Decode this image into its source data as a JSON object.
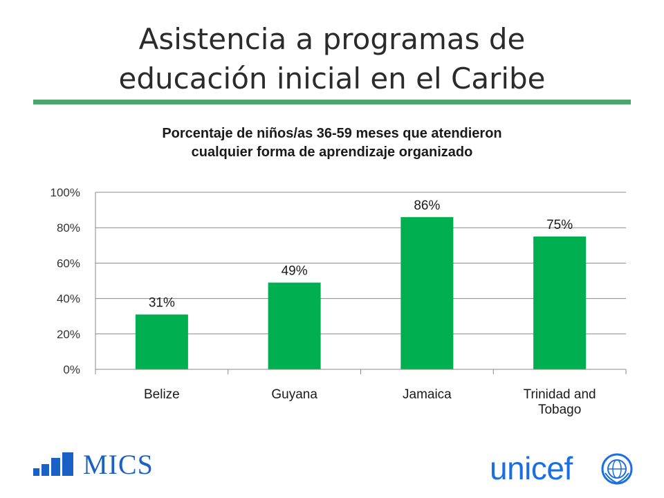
{
  "slide": {
    "title_line1": "Asistencia a programas de",
    "title_line2": "educación inicial en el Caribe"
  },
  "chart_data": {
    "type": "bar",
    "title_line1": "Porcentaje de niños/as 36-59 meses que atendieron",
    "title_line2": "cualquier forma de aprendizaje organizado",
    "categories": [
      [
        "Belize"
      ],
      [
        "Guyana"
      ],
      [
        "Jamaica"
      ],
      [
        "Trinidad and",
        "Tobago"
      ]
    ],
    "values": [
      31,
      49,
      86,
      75
    ],
    "data_labels": [
      "31%",
      "49%",
      "86%",
      "75%"
    ],
    "ylim": [
      0,
      100
    ],
    "yticks": [
      0,
      20,
      40,
      60,
      80,
      100
    ],
    "ytick_labels": [
      "0%",
      "20%",
      "40%",
      "60%",
      "80%",
      "100%"
    ],
    "grid": true,
    "legend": "none",
    "bar_color": "#00b050",
    "grid_color": "#888888"
  },
  "logos": {
    "mics": "MICS",
    "unicef": "unicef",
    "unicef_emblem": "un-globe-emblem-icon"
  },
  "colors": {
    "accent_rule": "#4ca56b",
    "logo_blue": "#1b60c4",
    "unicef_blue": "#1b6fe0"
  }
}
